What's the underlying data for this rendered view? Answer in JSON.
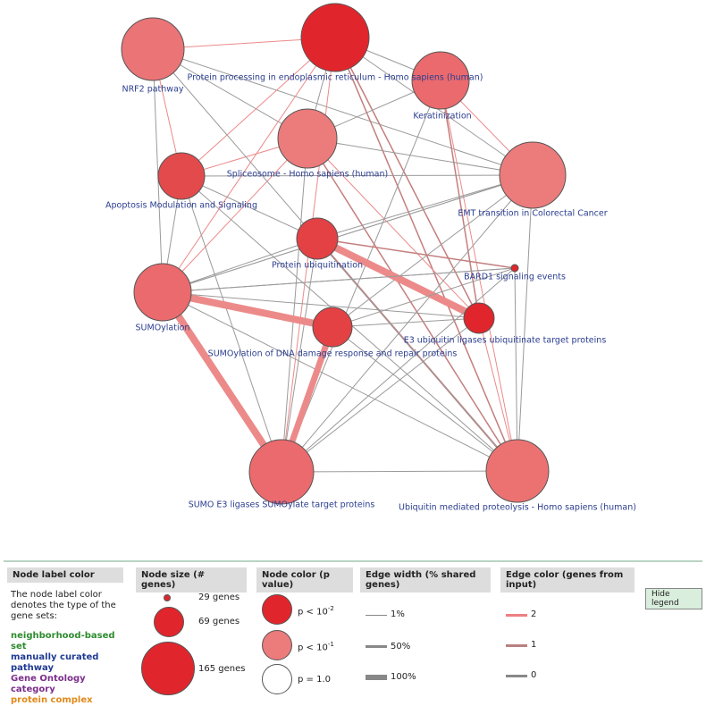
{
  "network": {
    "nodes": [
      {
        "label": "NRF2 pathway"
      },
      {
        "label": "Protein processing in endoplasmic reticulum - Homo sapiens (human)"
      },
      {
        "label": "Keratinization"
      },
      {
        "label": "Spliceosome - Homo sapiens (human)"
      },
      {
        "label": "Apoptosis Modulation and Signaling"
      },
      {
        "label": "EMT transition in Colorectal Cancer"
      },
      {
        "label": "Protein ubiquitination"
      },
      {
        "label": "BARD1 signaling events"
      },
      {
        "label": "SUMOylation"
      },
      {
        "label": "SUMOylation of DNA damage response and repair proteins"
      },
      {
        "label": "E3 ubiquitin ligases ubiquitinate target proteins"
      },
      {
        "label": "SUMO E3 ligases SUMOylate target proteins"
      },
      {
        "label": "Ubiquitin mediated proteolysis - Homo sapiens (human)"
      }
    ]
  },
  "legend": {
    "label_color": {
      "title": "Node label color",
      "text": "The node label color denotes the type of the gene sets:",
      "types": [
        "neighborhood-based set",
        "manually curated pathway",
        "Gene Ontology category",
        "protein complex"
      ]
    },
    "size": {
      "title": "Node size (# genes)",
      "items": [
        "29 genes",
        "69 genes",
        "165 genes"
      ]
    },
    "color": {
      "title": "Node color (p value)",
      "items": [
        {
          "base": "p < 10",
          "exp": "-2"
        },
        {
          "base": "p < 10",
          "exp": "-1"
        },
        {
          "base": "p = 1.0"
        }
      ]
    },
    "edge_width": {
      "title": "Edge width (% shared genes)",
      "items": [
        "1%",
        "50%",
        "100%"
      ]
    },
    "edge_color": {
      "title": "Edge color (genes from input)",
      "items": [
        "2",
        "1",
        "0"
      ]
    },
    "hide": "Hide legend"
  }
}
